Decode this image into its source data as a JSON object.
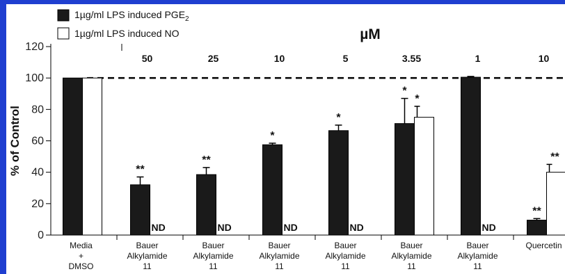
{
  "chart_data": {
    "type": "bar",
    "title": "µM",
    "ylabel": "% of Control",
    "xlabel": "",
    "ylim": [
      0,
      120
    ],
    "yticks": [
      0,
      20,
      40,
      60,
      80,
      100,
      120
    ],
    "reference_line": 100,
    "legend": [
      {
        "label": "1µg/ml LPS induced PGE",
        "sub": "2",
        "color": "#1a1a1a"
      },
      {
        "label": "1µg/ml LPS induced NO",
        "color": "#ffffff"
      }
    ],
    "concentrations": [
      "",
      "50",
      "25",
      "10",
      "5",
      "3.55",
      "1",
      "10"
    ],
    "categories": [
      [
        "Media",
        "+",
        "DMSO"
      ],
      [
        "Bauer",
        "Alkylamide",
        "11"
      ],
      [
        "Bauer",
        "Alkylamide",
        "11"
      ],
      [
        "Bauer",
        "Alkylamide",
        "11"
      ],
      [
        "Bauer",
        "Alkylamide",
        "11"
      ],
      [
        "Bauer",
        "Alkylamide",
        "11"
      ],
      [
        "Bauer",
        "Alkylamide",
        "11"
      ],
      [
        "Quercetin"
      ]
    ],
    "series": [
      {
        "name": "1µg/ml LPS induced PGE",
        "color": "#1a1a1a",
        "values": [
          100,
          32,
          38.5,
          57.5,
          66.5,
          71,
          100.5,
          9.5
        ],
        "errors": [
          0,
          5,
          4.5,
          1,
          3.5,
          16,
          0.5,
          1
        ],
        "annotations": [
          "",
          "**",
          "**",
          "*",
          "*",
          "*",
          "",
          "**"
        ]
      },
      {
        "name": "1µg/ml LPS induced NO",
        "color": "#ffffff",
        "values": [
          100,
          null,
          null,
          null,
          null,
          75,
          null,
          40
        ],
        "errors": [
          0,
          0,
          0,
          0,
          0,
          7,
          0,
          5
        ],
        "annotations": [
          "",
          "ND",
          "ND",
          "ND",
          "ND",
          "*",
          "ND",
          "**"
        ]
      }
    ]
  },
  "colors": {
    "frame_accent": "#1f3fd0",
    "bar_dark": "#1a1a1a",
    "bar_light": "#ffffff"
  }
}
